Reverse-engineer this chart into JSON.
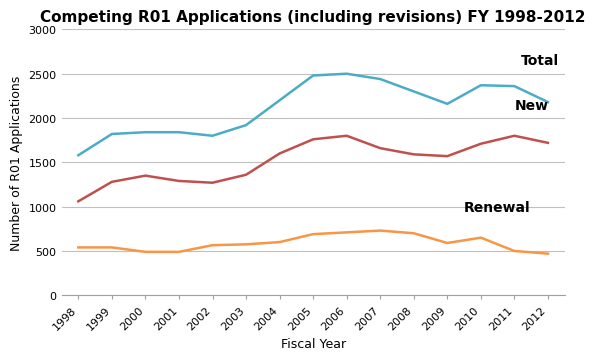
{
  "title": "Competing R01 Applications (including revisions) FY 1998-2012",
  "xlabel": "Fiscal Year",
  "ylabel": "Number of R01 Applications",
  "years": [
    1998,
    1999,
    2000,
    2001,
    2002,
    2003,
    2004,
    2005,
    2006,
    2007,
    2008,
    2009,
    2010,
    2011,
    2012
  ],
  "total": [
    1580,
    1820,
    1840,
    1840,
    1800,
    1920,
    2200,
    2480,
    2500,
    2440,
    2300,
    2160,
    2370,
    2360,
    2180
  ],
  "new": [
    1060,
    1280,
    1350,
    1290,
    1270,
    1360,
    1600,
    1760,
    1800,
    1660,
    1590,
    1570,
    1710,
    1800,
    1720
  ],
  "renewal": [
    540,
    540,
    490,
    490,
    565,
    575,
    600,
    690,
    710,
    730,
    700,
    590,
    650,
    500,
    470
  ],
  "total_color": "#4bacc6",
  "new_color": "#c0504d",
  "renewal_color": "#f79646",
  "bg_color": "#ffffff",
  "grid_color": "#c0c0c0",
  "ylim": [
    0,
    3000
  ],
  "yticks": [
    0,
    500,
    1000,
    1500,
    2000,
    2500,
    3000
  ],
  "line_width": 1.8,
  "title_fontsize": 11,
  "label_fontsize": 9,
  "tick_fontsize": 8,
  "annotation_fontsize": 10
}
